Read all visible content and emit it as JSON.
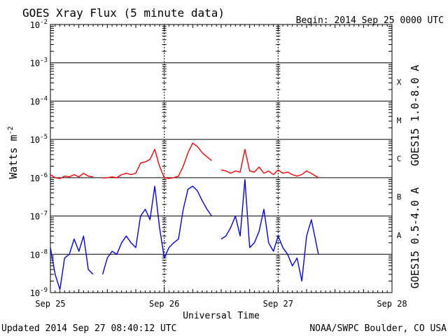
{
  "header": {
    "title": "GOES Xray Flux (5 minute data)",
    "begin": "Begin:  2014 Sep 25 0000 UTC"
  },
  "footer": {
    "updated": "Updated 2014 Sep 27 08:40:12 UTC",
    "credit": "NOAA/SWPC Boulder, CO USA"
  },
  "colors": {
    "long_channel": "#ff0000",
    "short_channel": "#0000ff",
    "grid": "#000000",
    "background": "#ffffff"
  },
  "chart_data": {
    "type": "line",
    "title": "GOES Xray Flux (5 minute data)",
    "xlabel": "Universal Time",
    "ylabel_main": "Watts m",
    "ylabel_exp": "-2",
    "y_scale": "log",
    "ylim": [
      1e-09,
      0.01
    ],
    "y_ticks": [
      {
        "value": 1e-09,
        "exp": "-9"
      },
      {
        "value": 1e-08,
        "exp": "-8"
      },
      {
        "value": 1e-07,
        "exp": "-7"
      },
      {
        "value": 1e-06,
        "exp": "-6"
      },
      {
        "value": 1e-05,
        "exp": "-5"
      },
      {
        "value": 0.0001,
        "exp": "-4"
      },
      {
        "value": 0.001,
        "exp": "-3"
      },
      {
        "value": 0.01,
        "exp": "-2"
      }
    ],
    "xlim": [
      "2014-09-25 00:00",
      "2014-09-28 00:00"
    ],
    "x_tick_labels": [
      {
        "x": "2014-09-25 00:00",
        "label": "Sep 25"
      },
      {
        "x": "2014-09-26 00:00",
        "label": "Sep 26"
      },
      {
        "x": "2014-09-27 00:00",
        "label": "Sep 27"
      },
      {
        "x": "2014-09-28 00:00",
        "label": "Sep 28"
      }
    ],
    "day_dividers": [
      "2014-09-26 00:00",
      "2014-09-27 00:00"
    ],
    "flare_classes": [
      {
        "label": "A",
        "value": 1e-08
      },
      {
        "label": "B",
        "value": 1e-07
      },
      {
        "label": "C",
        "value": 1e-06
      },
      {
        "label": "M",
        "value": 1e-05
      },
      {
        "label": "X",
        "value": 0.0001
      }
    ],
    "grid": "horizontal at each decade",
    "series": [
      {
        "name": "GOES15 1.0-8.0 A",
        "color": "#ff0000",
        "points": [
          {
            "x": "2014-09-25 00:00",
            "y": 1.2e-06
          },
          {
            "x": "2014-09-25 01:00",
            "y": 1e-06
          },
          {
            "x": "2014-09-25 02:00",
            "y": 9.5e-07
          },
          {
            "x": "2014-09-25 03:00",
            "y": 1.1e-06
          },
          {
            "x": "2014-09-25 04:00",
            "y": 1.05e-06
          },
          {
            "x": "2014-09-25 05:00",
            "y": 1.2e-06
          },
          {
            "x": "2014-09-25 06:00",
            "y": 1.05e-06
          },
          {
            "x": "2014-09-25 07:00",
            "y": 1.3e-06
          },
          {
            "x": "2014-09-25 08:00",
            "y": 1.1e-06
          },
          {
            "x": "2014-09-25 09:00",
            "y": 1.05e-06
          },
          {
            "x": "2014-09-25 10:00",
            "y": null
          },
          {
            "x": "2014-09-25 11:00",
            "y": 9.8e-07
          },
          {
            "x": "2014-09-25 12:00",
            "y": 1e-06
          },
          {
            "x": "2014-09-25 13:00",
            "y": 1.05e-06
          },
          {
            "x": "2014-09-25 14:00",
            "y": 1e-06
          },
          {
            "x": "2014-09-25 15:00",
            "y": 1.2e-06
          },
          {
            "x": "2014-09-25 16:00",
            "y": 1.3e-06
          },
          {
            "x": "2014-09-25 17:00",
            "y": 1.2e-06
          },
          {
            "x": "2014-09-25 18:00",
            "y": 1.3e-06
          },
          {
            "x": "2014-09-25 19:00",
            "y": 2.4e-06
          },
          {
            "x": "2014-09-25 20:00",
            "y": 2.6e-06
          },
          {
            "x": "2014-09-25 21:00",
            "y": 3e-06
          },
          {
            "x": "2014-09-25 22:00",
            "y": 5.5e-06
          },
          {
            "x": "2014-09-25 23:00",
            "y": 2e-06
          },
          {
            "x": "2014-09-26 00:00",
            "y": 1e-06
          },
          {
            "x": "2014-09-26 01:00",
            "y": 9.5e-07
          },
          {
            "x": "2014-09-26 02:00",
            "y": 1e-06
          },
          {
            "x": "2014-09-26 03:00",
            "y": 1.1e-06
          },
          {
            "x": "2014-09-26 04:00",
            "y": 2e-06
          },
          {
            "x": "2014-09-26 05:00",
            "y": 4.5e-06
          },
          {
            "x": "2014-09-26 06:00",
            "y": 8e-06
          },
          {
            "x": "2014-09-26 07:00",
            "y": 6.5e-06
          },
          {
            "x": "2014-09-26 08:00",
            "y": 4.5e-06
          },
          {
            "x": "2014-09-26 09:00",
            "y": 3.5e-06
          },
          {
            "x": "2014-09-26 10:00",
            "y": 2.8e-06
          },
          {
            "x": "2014-09-26 11:00",
            "y": null
          },
          {
            "x": "2014-09-26 12:00",
            "y": 1.6e-06
          },
          {
            "x": "2014-09-26 13:00",
            "y": 1.5e-06
          },
          {
            "x": "2014-09-26 14:00",
            "y": 1.3e-06
          },
          {
            "x": "2014-09-26 15:00",
            "y": 1.5e-06
          },
          {
            "x": "2014-09-26 16:00",
            "y": 1.4e-06
          },
          {
            "x": "2014-09-26 17:00",
            "y": 5.5e-06
          },
          {
            "x": "2014-09-26 18:00",
            "y": 1.5e-06
          },
          {
            "x": "2014-09-26 19:00",
            "y": 1.4e-06
          },
          {
            "x": "2014-09-26 20:00",
            "y": 1.9e-06
          },
          {
            "x": "2014-09-26 21:00",
            "y": 1.3e-06
          },
          {
            "x": "2014-09-26 22:00",
            "y": 1.5e-06
          },
          {
            "x": "2014-09-26 23:00",
            "y": 1.2e-06
          },
          {
            "x": "2014-09-27 00:00",
            "y": 1.6e-06
          },
          {
            "x": "2014-09-27 01:00",
            "y": 1.3e-06
          },
          {
            "x": "2014-09-27 02:00",
            "y": 1.4e-06
          },
          {
            "x": "2014-09-27 03:00",
            "y": 1.2e-06
          },
          {
            "x": "2014-09-27 04:00",
            "y": 1.1e-06
          },
          {
            "x": "2014-09-27 05:00",
            "y": 1.2e-06
          },
          {
            "x": "2014-09-27 06:00",
            "y": 1.5e-06
          },
          {
            "x": "2014-09-27 07:00",
            "y": 1.3e-06
          },
          {
            "x": "2014-09-27 08:30",
            "y": 1e-06
          }
        ]
      },
      {
        "name": "GOES15 0.5-4.0 A",
        "color": "#0000ff",
        "points": [
          {
            "x": "2014-09-25 00:00",
            "y": 1.5e-08
          },
          {
            "x": "2014-09-25 01:00",
            "y": 3e-09
          },
          {
            "x": "2014-09-25 02:00",
            "y": 1.2e-09
          },
          {
            "x": "2014-09-25 03:00",
            "y": 8e-09
          },
          {
            "x": "2014-09-25 04:00",
            "y": 1e-08
          },
          {
            "x": "2014-09-25 05:00",
            "y": 2.5e-08
          },
          {
            "x": "2014-09-25 06:00",
            "y": 1.2e-08
          },
          {
            "x": "2014-09-25 07:00",
            "y": 3e-08
          },
          {
            "x": "2014-09-25 08:00",
            "y": 4e-09
          },
          {
            "x": "2014-09-25 09:00",
            "y": 3e-09
          },
          {
            "x": "2014-09-25 10:00",
            "y": null
          },
          {
            "x": "2014-09-25 11:00",
            "y": 3e-09
          },
          {
            "x": "2014-09-25 12:00",
            "y": 8e-09
          },
          {
            "x": "2014-09-25 13:00",
            "y": 1.2e-08
          },
          {
            "x": "2014-09-25 14:00",
            "y": 1e-08
          },
          {
            "x": "2014-09-25 15:00",
            "y": 2e-08
          },
          {
            "x": "2014-09-25 16:00",
            "y": 3e-08
          },
          {
            "x": "2014-09-25 17:00",
            "y": 2e-08
          },
          {
            "x": "2014-09-25 18:00",
            "y": 1.5e-08
          },
          {
            "x": "2014-09-25 19:00",
            "y": 1e-07
          },
          {
            "x": "2014-09-25 20:00",
            "y": 1.5e-07
          },
          {
            "x": "2014-09-25 21:00",
            "y": 8e-08
          },
          {
            "x": "2014-09-25 22:00",
            "y": 6e-07
          },
          {
            "x": "2014-09-25 23:00",
            "y": 5e-08
          },
          {
            "x": "2014-09-26 00:00",
            "y": 8e-09
          },
          {
            "x": "2014-09-26 01:00",
            "y": 1.5e-08
          },
          {
            "x": "2014-09-26 02:00",
            "y": 2e-08
          },
          {
            "x": "2014-09-26 03:00",
            "y": 2.5e-08
          },
          {
            "x": "2014-09-26 04:00",
            "y": 1.5e-07
          },
          {
            "x": "2014-09-26 05:00",
            "y": 5e-07
          },
          {
            "x": "2014-09-26 06:00",
            "y": 6e-07
          },
          {
            "x": "2014-09-26 07:00",
            "y": 4.5e-07
          },
          {
            "x": "2014-09-26 08:00",
            "y": 2.5e-07
          },
          {
            "x": "2014-09-26 09:00",
            "y": 1.5e-07
          },
          {
            "x": "2014-09-26 10:00",
            "y": 1e-07
          },
          {
            "x": "2014-09-26 11:00",
            "y": null
          },
          {
            "x": "2014-09-26 12:00",
            "y": 2.5e-08
          },
          {
            "x": "2014-09-26 13:00",
            "y": 3e-08
          },
          {
            "x": "2014-09-26 14:00",
            "y": 5e-08
          },
          {
            "x": "2014-09-26 15:00",
            "y": 1e-07
          },
          {
            "x": "2014-09-26 16:00",
            "y": 3e-08
          },
          {
            "x": "2014-09-26 17:00",
            "y": 9e-07
          },
          {
            "x": "2014-09-26 18:00",
            "y": 1.5e-08
          },
          {
            "x": "2014-09-26 19:00",
            "y": 2e-08
          },
          {
            "x": "2014-09-26 20:00",
            "y": 4e-08
          },
          {
            "x": "2014-09-26 21:00",
            "y": 1.5e-07
          },
          {
            "x": "2014-09-26 22:00",
            "y": 2e-08
          },
          {
            "x": "2014-09-26 23:00",
            "y": 1.2e-08
          },
          {
            "x": "2014-09-27 00:00",
            "y": 3e-08
          },
          {
            "x": "2014-09-27 01:00",
            "y": 1.5e-08
          },
          {
            "x": "2014-09-27 02:00",
            "y": 1e-08
          },
          {
            "x": "2014-09-27 03:00",
            "y": 5e-09
          },
          {
            "x": "2014-09-27 04:00",
            "y": 8e-09
          },
          {
            "x": "2014-09-27 05:00",
            "y": 2e-09
          },
          {
            "x": "2014-09-27 06:00",
            "y": 3e-08
          },
          {
            "x": "2014-09-27 07:00",
            "y": 8e-08
          },
          {
            "x": "2014-09-27 08:30",
            "y": 1e-08
          }
        ]
      }
    ]
  }
}
